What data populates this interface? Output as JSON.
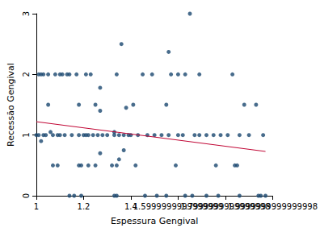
{
  "chart_data": {
    "type": "scatter",
    "x_label": "Espessura Gengival",
    "y_label": "Recessão Gengival",
    "xlim": [
      1,
      2
    ],
    "xticks": [
      1,
      1.2,
      1.4,
      1.6,
      1.8,
      2
    ],
    "ylim": [
      0,
      3
    ],
    "yticks": [
      0,
      1,
      2,
      3
    ],
    "grid": false,
    "series": [
      {
        "type": "scatter",
        "color": "#1a476f",
        "marker": "circle",
        "x": [
          1.01,
          1.02,
          1.03,
          1.05,
          1.08,
          1.1,
          1.11,
          1.13,
          1.14,
          1.17,
          1.21,
          1.23,
          1.34,
          1.45,
          1.49,
          1.57,
          1.6,
          1.63,
          1.69,
          1.83,
          1.0,
          1.01,
          1.03,
          1.04,
          1.07,
          1.09,
          1.1,
          1.12,
          1.15,
          1.18,
          1.2,
          1.21,
          1.22,
          1.24,
          1.26,
          1.28,
          1.3,
          1.33,
          1.35,
          1.37,
          1.39,
          1.4,
          1.43,
          1.47,
          1.5,
          1.53,
          1.56,
          1.6,
          1.62,
          1.67,
          1.69,
          1.72,
          1.75,
          1.78,
          1.81,
          1.86,
          1.9,
          1.96,
          1.14,
          1.16,
          1.19,
          1.33,
          1.34,
          1.46,
          1.51,
          1.55,
          1.63,
          1.66,
          1.72,
          1.77,
          1.86,
          1.94,
          1.95,
          1.97,
          1.07,
          1.09,
          1.18,
          1.19,
          1.22,
          1.25,
          1.32,
          1.34,
          1.42,
          1.59,
          1.76,
          1.84,
          1.85,
          1.05,
          1.18,
          1.25,
          1.27,
          1.27,
          1.27,
          1.36,
          1.37,
          1.38,
          1.41,
          1.55,
          1.56,
          1.65,
          1.88,
          1.93,
          1.02,
          1.06,
          1.33,
          1.35
        ],
        "values": [
          2,
          2,
          2,
          2,
          2,
          2,
          2,
          2,
          2,
          2,
          2,
          2,
          2,
          2,
          2,
          2,
          2,
          2,
          2,
          2,
          1,
          1,
          1,
          1,
          1,
          1,
          1,
          1,
          1,
          1,
          1,
          1,
          1,
          1,
          1,
          1,
          1,
          1,
          1,
          1,
          1,
          1,
          1,
          1,
          1,
          1,
          1,
          1,
          1,
          1,
          1,
          1,
          1,
          1,
          1,
          1,
          1,
          1,
          0,
          0,
          0,
          0,
          0,
          0,
          0,
          0,
          0,
          0,
          0,
          0,
          0,
          0,
          0,
          0,
          0.5,
          0.5,
          0.5,
          0.5,
          0.5,
          0.5,
          0.5,
          0.5,
          0.5,
          0.5,
          0.5,
          0.5,
          0.5,
          1.5,
          1.5,
          1.5,
          1.78,
          1.4,
          0.7,
          2.5,
          0.75,
          1.45,
          1.5,
          1.5,
          2.37,
          3,
          1.5,
          1.5,
          0.9,
          1.05,
          1.05,
          0.6
        ]
      },
      {
        "type": "line",
        "color": "#c10534",
        "line_style": "solid",
        "x": [
          1.0,
          1.97
        ],
        "values": [
          1.22,
          0.73
        ]
      }
    ]
  }
}
